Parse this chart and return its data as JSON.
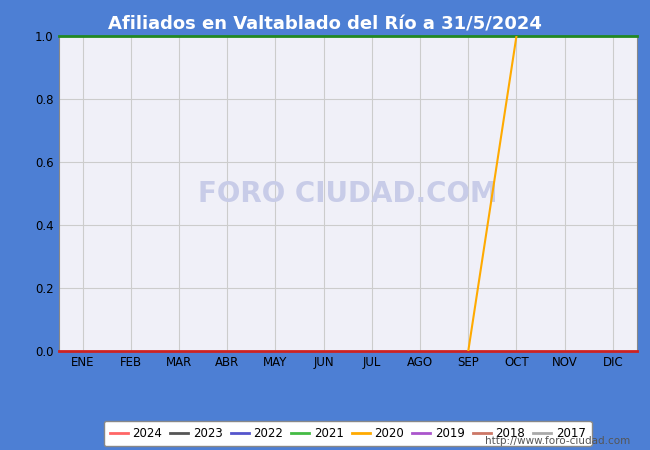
{
  "title": "Afiliados en Valtablado del Río a 31/5/2024",
  "title_bg_color": "#4d7fd4",
  "title_text_color": "#ffffff",
  "plot_bg_color": "#f0f0f8",
  "grid_color": "#cccccc",
  "outer_bg_color": "#4d7fd4",
  "xlabel_months": [
    "ENE",
    "FEB",
    "MAR",
    "ABR",
    "MAY",
    "JUN",
    "JUL",
    "AGO",
    "SEP",
    "OCT",
    "NOV",
    "DIC"
  ],
  "ylim": [
    0.0,
    1.0
  ],
  "yticks": [
    0.0,
    0.2,
    0.4,
    0.6,
    0.8,
    1.0
  ],
  "series": {
    "2024": {
      "color": "#ff6666",
      "data": []
    },
    "2023": {
      "color": "#555555",
      "data": []
    },
    "2022": {
      "color": "#5555cc",
      "data": []
    },
    "2021": {
      "color": "#44bb44",
      "data": []
    },
    "2020": {
      "color": "#ffaa00",
      "data": [
        [
          9,
          0.0
        ],
        [
          10,
          1.0
        ]
      ]
    },
    "2019": {
      "color": "#aa55cc",
      "data": []
    },
    "2018": {
      "color": "#cc7766",
      "data": []
    },
    "2017": {
      "color": "#aaaaaa",
      "data": []
    }
  },
  "series_order": [
    "2024",
    "2023",
    "2022",
    "2021",
    "2020",
    "2019",
    "2018",
    "2017"
  ],
  "spine_top_color": "#228822",
  "spine_bottom_color": "#cc2222",
  "spine_left_color": "#888888",
  "spine_right_color": "#888888",
  "watermark": "FORO CIUDAD.COM",
  "watermark_color": "#c8cce8",
  "url": "http://www.foro-ciudad.com",
  "url_color": "#555555",
  "legend_border_color": "#888888",
  "legend_bg_color": "#ffffff"
}
